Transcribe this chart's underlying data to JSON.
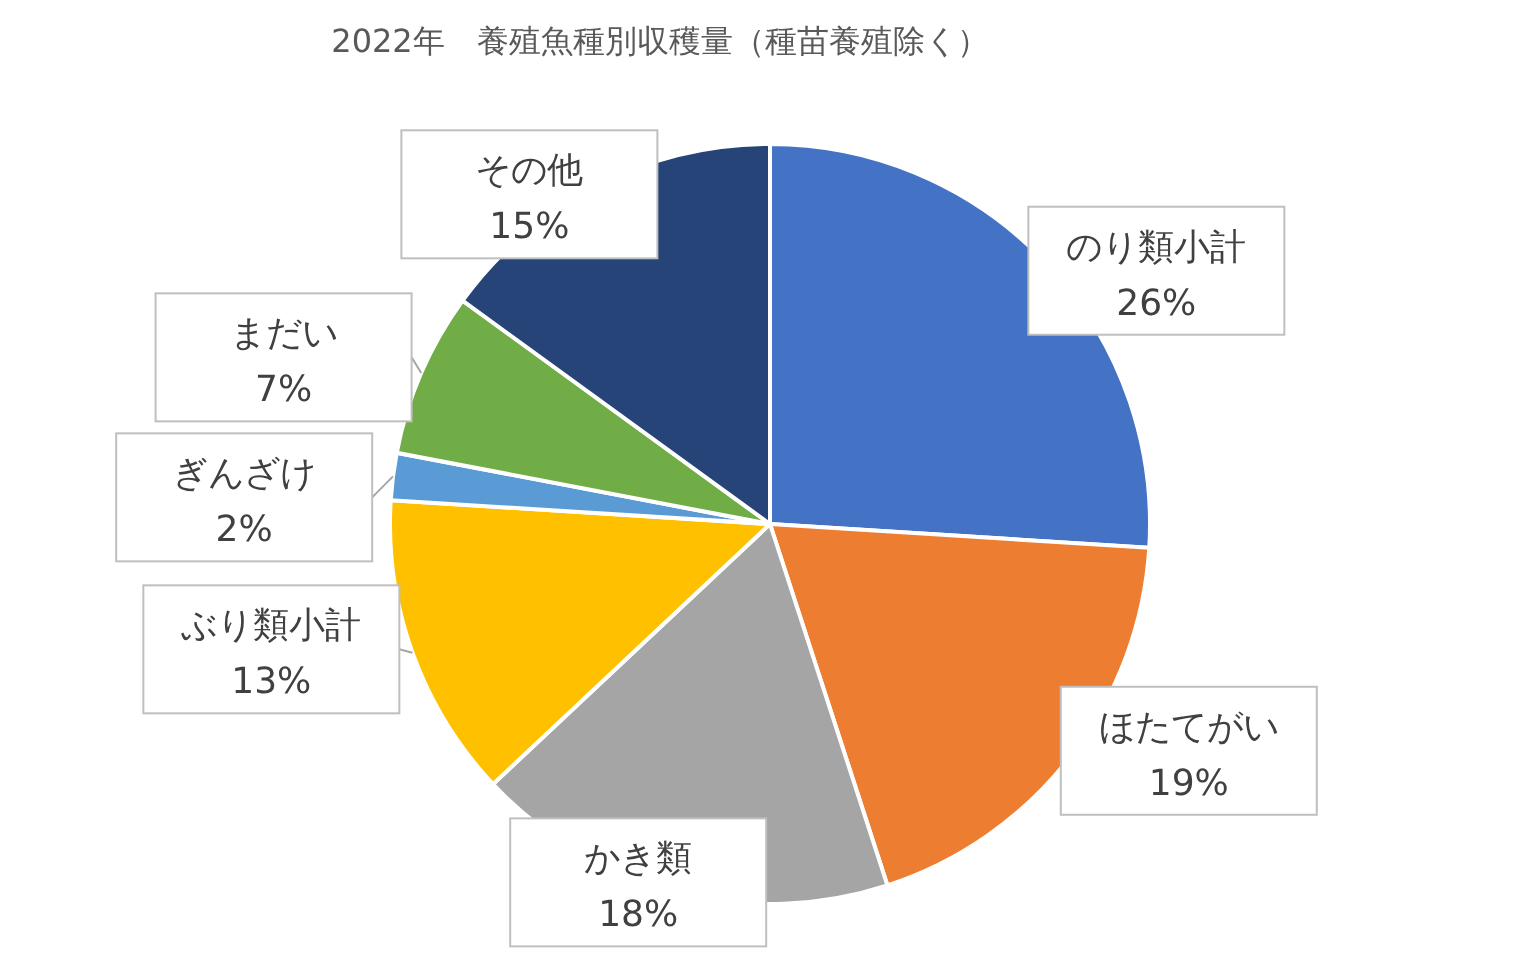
{
  "chart_data": {
    "type": "pie",
    "title": "2022年　養殖魚種別収穫量（種苗養殖除く）",
    "categories": [
      "のり類小計",
      "ほたてがい",
      "かき類",
      "ぶり類小計",
      "ぎんざけ",
      "まだい",
      "その他"
    ],
    "values": [
      26,
      19,
      18,
      13,
      2,
      7,
      15
    ],
    "value_labels": [
      "26%",
      "19%",
      "18%",
      "13%",
      "2%",
      "7%",
      "15%"
    ],
    "colors": [
      "#4472c4",
      "#ed7d31",
      "#a5a5a5",
      "#ffc000",
      "#5b9bd5",
      "#70ad47",
      "#264478"
    ],
    "legend": false
  }
}
